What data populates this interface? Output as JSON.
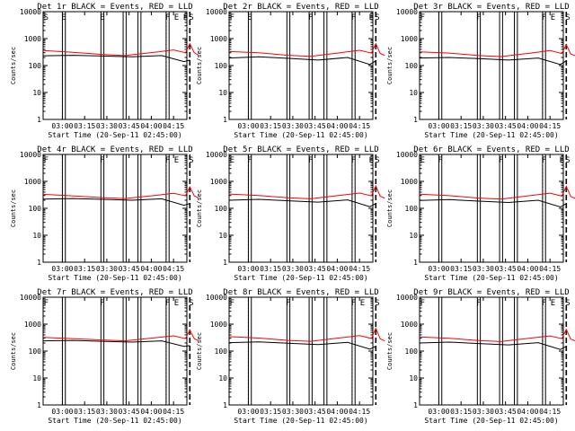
{
  "chart_data": [
    {
      "type": "line",
      "title": "Det 1r BLACK = Events, RED = LLD",
      "xlabel": "Start Time (20-Sep-11 02:45:00)",
      "ylabel": "Counts/sec",
      "yscale": "log",
      "ylim": [
        1,
        10000
      ],
      "xlim": [
        "02:47",
        "04:24"
      ],
      "xticks": [
        "03:00",
        "03:15",
        "03:30",
        "03:45",
        "04:00",
        "04:15"
      ],
      "yticks": [
        "1",
        "10",
        "100",
        "1000",
        "10000"
      ],
      "flags": [
        "S",
        "E",
        "E",
        "F",
        "E",
        "F",
        "S"
      ],
      "series": [
        {
          "color": "#000000",
          "values": [
            [
              0,
              230
            ],
            [
              20,
              240
            ],
            [
              40,
              225
            ],
            [
              60,
              210
            ],
            [
              80,
              235
            ],
            [
              95,
              140
            ],
            [
              99,
              160
            ]
          ]
        },
        {
          "color": "#ff0000",
          "values": [
            [
              0,
              360
            ],
            [
              20,
              310
            ],
            [
              40,
              260
            ],
            [
              55,
              235
            ],
            [
              75,
              310
            ],
            [
              88,
              380
            ],
            [
              96,
              300
            ],
            [
              99,
              650
            ],
            [
              102,
              300
            ],
            [
              105,
              240
            ]
          ]
        }
      ]
    },
    {
      "type": "line",
      "title": "Det 2r BLACK = Events, RED = LLD",
      "xlabel": "Start Time (20-Sep-11 02:45:00)",
      "ylabel": "Counts/sec",
      "yscale": "log",
      "ylim": [
        1,
        10000
      ],
      "xlim": [
        "02:47",
        "04:24"
      ],
      "xticks": [
        "03:00",
        "03:15",
        "03:30",
        "03:45",
        "04:00",
        "04:15"
      ],
      "yticks": [
        "1",
        "10",
        "100",
        "1000",
        "10000"
      ],
      "flags": [
        "F",
        "E",
        "F",
        "F",
        "E",
        "S"
      ],
      "series": [
        {
          "color": "#000000",
          "values": [
            [
              0,
              190
            ],
            [
              20,
              210
            ],
            [
              40,
              185
            ],
            [
              60,
              160
            ],
            [
              80,
              200
            ],
            [
              95,
              110
            ],
            [
              99,
              150
            ]
          ]
        },
        {
          "color": "#ff0000",
          "values": [
            [
              0,
              330
            ],
            [
              20,
              300
            ],
            [
              40,
              240
            ],
            [
              55,
              220
            ],
            [
              75,
              300
            ],
            [
              88,
              370
            ],
            [
              96,
              290
            ],
            [
              99,
              650
            ],
            [
              102,
              280
            ],
            [
              105,
              240
            ]
          ]
        }
      ]
    },
    {
      "type": "line",
      "title": "Det 3r BLACK = Events, RED = LLD",
      "xlabel": "Start Time (20-Sep-11 02:45:00)",
      "ylabel": "Counts/sec",
      "yscale": "log",
      "ylim": [
        1,
        10000
      ],
      "xlim": [
        "02:47",
        "04:24"
      ],
      "xticks": [
        "03:00",
        "03:15",
        "03:30",
        "03:45",
        "04:00",
        "04:15"
      ],
      "yticks": [
        "1",
        "10",
        "100",
        "1000",
        "10000"
      ],
      "flags": [
        "F",
        "F",
        "F",
        "E",
        "S"
      ],
      "series": [
        {
          "color": "#000000",
          "values": [
            [
              0,
              190
            ],
            [
              20,
              200
            ],
            [
              40,
              180
            ],
            [
              60,
              160
            ],
            [
              80,
              190
            ],
            [
              95,
              110
            ],
            [
              99,
              150
            ]
          ]
        },
        {
          "color": "#ff0000",
          "values": [
            [
              0,
              320
            ],
            [
              20,
              290
            ],
            [
              40,
              235
            ],
            [
              55,
              215
            ],
            [
              75,
              290
            ],
            [
              88,
              360
            ],
            [
              96,
              280
            ],
            [
              99,
              600
            ],
            [
              102,
              270
            ],
            [
              105,
              230
            ]
          ]
        }
      ]
    },
    {
      "type": "line",
      "title": "Det 4r BLACK = Events, RED = LLD",
      "xlabel": "Start Time (20-Sep-11 02:45:00)",
      "ylabel": "Counts/sec",
      "yscale": "log",
      "ylim": [
        1,
        10000
      ],
      "xlim": [
        "02:47",
        "04:24"
      ],
      "xticks": [
        "03:00",
        "03:15",
        "03:30",
        "03:45",
        "04:00",
        "04:15"
      ],
      "yticks": [
        "1",
        "10",
        "100",
        "1000",
        "10000"
      ],
      "flags": [
        "F",
        "F",
        "F",
        "E",
        "S"
      ],
      "series": [
        {
          "color": "#000000",
          "values": [
            [
              0,
              220
            ],
            [
              20,
              230
            ],
            [
              40,
              215
            ],
            [
              60,
              200
            ],
            [
              80,
              225
            ],
            [
              95,
              130
            ],
            [
              99,
              150
            ]
          ]
        },
        {
          "color": "#ff0000",
          "values": [
            [
              0,
              330
            ],
            [
              20,
              290
            ],
            [
              40,
              250
            ],
            [
              55,
              230
            ],
            [
              75,
              300
            ],
            [
              88,
              360
            ],
            [
              96,
              290
            ],
            [
              99,
              620
            ],
            [
              102,
              290
            ],
            [
              105,
              240
            ]
          ]
        }
      ]
    },
    {
      "type": "line",
      "title": "Det 5r BLACK = Events, RED = LLD",
      "xlabel": "Start Time (20-Sep-11 02:45:00)",
      "ylabel": "Counts/sec",
      "yscale": "log",
      "ylim": [
        1,
        10000
      ],
      "xlim": [
        "02:47",
        "04:24"
      ],
      "xticks": [
        "03:00",
        "03:15",
        "03:30",
        "03:45",
        "04:00",
        "04:15"
      ],
      "yticks": [
        "1",
        "10",
        "100",
        "1000",
        "10000"
      ],
      "flags": [
        "E",
        "F",
        "F",
        "F",
        "E",
        "S"
      ],
      "series": [
        {
          "color": "#000000",
          "values": [
            [
              0,
              200
            ],
            [
              20,
              215
            ],
            [
              40,
              190
            ],
            [
              60,
              170
            ],
            [
              80,
              205
            ],
            [
              95,
              115
            ],
            [
              99,
              150
            ]
          ]
        },
        {
          "color": "#ff0000",
          "values": [
            [
              0,
              340
            ],
            [
              20,
              300
            ],
            [
              40,
              245
            ],
            [
              55,
              225
            ],
            [
              75,
              305
            ],
            [
              88,
              370
            ],
            [
              96,
              290
            ],
            [
              99,
              680
            ],
            [
              102,
              280
            ],
            [
              105,
              240
            ]
          ]
        }
      ]
    },
    {
      "type": "line",
      "title": "Det 6r BLACK = Events, RED = LLD",
      "xlabel": "Start Time (20-Sep-11 02:45:00)",
      "ylabel": "Counts/sec",
      "yscale": "log",
      "ylim": [
        1,
        10000
      ],
      "xlim": [
        "02:47",
        "04:24"
      ],
      "xticks": [
        "03:00",
        "03:15",
        "03:30",
        "03:45",
        "04:00",
        "04:15"
      ],
      "yticks": [
        "1",
        "10",
        "100",
        "1000",
        "10000"
      ],
      "flags": [
        "E",
        "F",
        "F",
        "F",
        "E",
        "S"
      ],
      "series": [
        {
          "color": "#000000",
          "values": [
            [
              0,
              195
            ],
            [
              20,
              210
            ],
            [
              40,
              185
            ],
            [
              60,
              165
            ],
            [
              80,
              200
            ],
            [
              95,
              112
            ],
            [
              99,
              150
            ]
          ]
        },
        {
          "color": "#ff0000",
          "values": [
            [
              0,
              335
            ],
            [
              20,
              295
            ],
            [
              40,
              240
            ],
            [
              55,
              220
            ],
            [
              75,
              300
            ],
            [
              88,
              365
            ],
            [
              96,
              285
            ],
            [
              99,
              660
            ],
            [
              102,
              275
            ],
            [
              105,
              235
            ]
          ]
        }
      ]
    },
    {
      "type": "line",
      "title": "Det 7r BLACK = Events, RED = LLD",
      "xlabel": "Start Time (20-Sep-11 02:45:00)",
      "ylabel": "Counts/sec",
      "yscale": "log",
      "ylim": [
        1,
        10000
      ],
      "xlim": [
        "02:47",
        "04:24"
      ],
      "xticks": [
        "03:00",
        "03:15",
        "03:30",
        "03:45",
        "04:00",
        "04:15"
      ],
      "yticks": [
        "1",
        "10",
        "100",
        "1000",
        "10000"
      ],
      "flags": [
        "F",
        "F",
        "F",
        "E",
        "S"
      ],
      "series": [
        {
          "color": "#000000",
          "values": [
            [
              0,
              240
            ],
            [
              20,
              250
            ],
            [
              40,
              230
            ],
            [
              60,
              215
            ],
            [
              80,
              240
            ],
            [
              95,
              150
            ],
            [
              99,
              160
            ]
          ]
        },
        {
          "color": "#ff0000",
          "values": [
            [
              0,
              320
            ],
            [
              20,
              290
            ],
            [
              40,
              260
            ],
            [
              55,
              240
            ],
            [
              75,
              310
            ],
            [
              88,
              370
            ],
            [
              96,
              290
            ],
            [
              99,
              600
            ],
            [
              102,
              290
            ],
            [
              105,
              240
            ]
          ]
        }
      ]
    },
    {
      "type": "line",
      "title": "Det 8r BLACK = Events, RED = LLD",
      "xlabel": "Start Time (20-Sep-11 02:45:00)",
      "ylabel": "Counts/sec",
      "yscale": "log",
      "ylim": [
        1,
        10000
      ],
      "xlim": [
        "02:47",
        "04:24"
      ],
      "xticks": [
        "03:00",
        "03:15",
        "03:30",
        "03:45",
        "04:00",
        "04:15"
      ],
      "yticks": [
        "1",
        "10",
        "100",
        "1000",
        "10000"
      ],
      "flags": [
        "F",
        "F",
        "F",
        "E",
        "S"
      ],
      "series": [
        {
          "color": "#000000",
          "values": [
            [
              0,
              205
            ],
            [
              20,
              220
            ],
            [
              40,
              195
            ],
            [
              60,
              175
            ],
            [
              80,
              210
            ],
            [
              95,
              118
            ],
            [
              99,
              150
            ]
          ]
        },
        {
          "color": "#ff0000",
          "values": [
            [
              0,
              345
            ],
            [
              20,
              305
            ],
            [
              40,
              250
            ],
            [
              55,
              230
            ],
            [
              75,
              310
            ],
            [
              88,
              375
            ],
            [
              96,
              295
            ],
            [
              99,
              700
            ],
            [
              102,
              285
            ],
            [
              105,
              240
            ]
          ]
        }
      ]
    },
    {
      "type": "line",
      "title": "Det 9r BLACK = Events, RED = LLD",
      "xlabel": "Start Time (20-Sep-11 02:45:00)",
      "ylabel": "Counts/sec",
      "yscale": "log",
      "ylim": [
        1,
        10000
      ],
      "xlim": [
        "02:47",
        "04:24"
      ],
      "xticks": [
        "03:00",
        "03:15",
        "03:30",
        "03:45",
        "04:00",
        "04:15"
      ],
      "yticks": [
        "1",
        "10",
        "100",
        "1000",
        "10000"
      ],
      "flags": [
        "F",
        "F",
        "F",
        "E",
        "S"
      ],
      "series": [
        {
          "color": "#000000",
          "values": [
            [
              0,
              200
            ],
            [
              20,
              215
            ],
            [
              40,
              190
            ],
            [
              60,
              170
            ],
            [
              80,
              205
            ],
            [
              95,
              115
            ],
            [
              99,
              150
            ]
          ]
        },
        {
          "color": "#ff0000",
          "values": [
            [
              0,
              335
            ],
            [
              20,
              300
            ],
            [
              40,
              245
            ],
            [
              55,
              225
            ],
            [
              75,
              305
            ],
            [
              88,
              365
            ],
            [
              96,
              290
            ],
            [
              99,
              640
            ],
            [
              102,
              280
            ],
            [
              105,
              238
            ]
          ]
        }
      ]
    }
  ]
}
